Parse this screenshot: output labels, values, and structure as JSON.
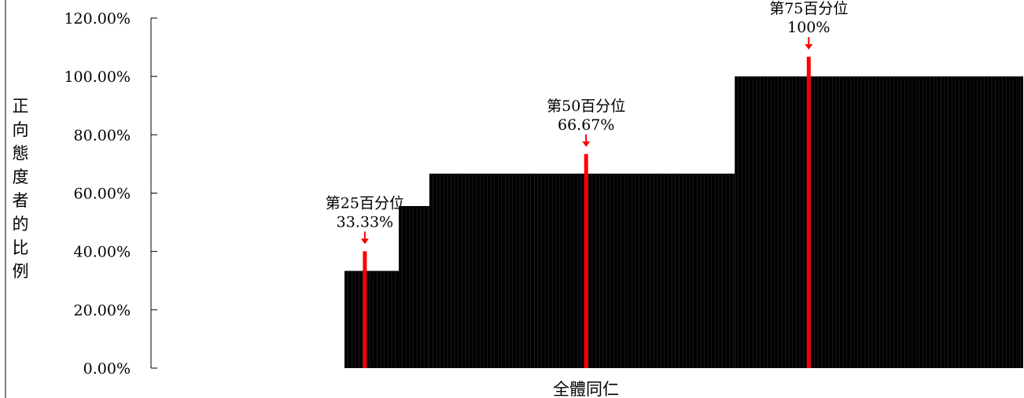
{
  "chart_data": {
    "type": "bar",
    "title": "",
    "xlabel": "全體同仁",
    "ylabel": "正向態度者的比例",
    "ylim": [
      0,
      1.2
    ],
    "y_ticks": [
      "0.00%",
      "20.00%",
      "40.00%",
      "60.00%",
      "80.00%",
      "100.00%",
      "120.00%"
    ],
    "grid": false,
    "legend": "none",
    "bar_color": "#000000",
    "marker_color": "#ff0000",
    "segments": [
      {
        "value": 0.3333,
        "share": 0.08
      },
      {
        "value": 0.5556,
        "share": 0.045
      },
      {
        "value": 0.6667,
        "share": 0.45
      },
      {
        "value": 1.0,
        "share": 0.425
      }
    ],
    "percentiles": [
      {
        "label": "第25百分位",
        "value_label": "33.33%",
        "value": 0.3333,
        "position": 0.03
      },
      {
        "label": "第50百分位",
        "value_label": "66.67%",
        "value": 0.6667,
        "position": 0.356
      },
      {
        "label": "第75百分位",
        "value_label": "100%",
        "value": 1.0,
        "position": 0.684
      }
    ]
  }
}
